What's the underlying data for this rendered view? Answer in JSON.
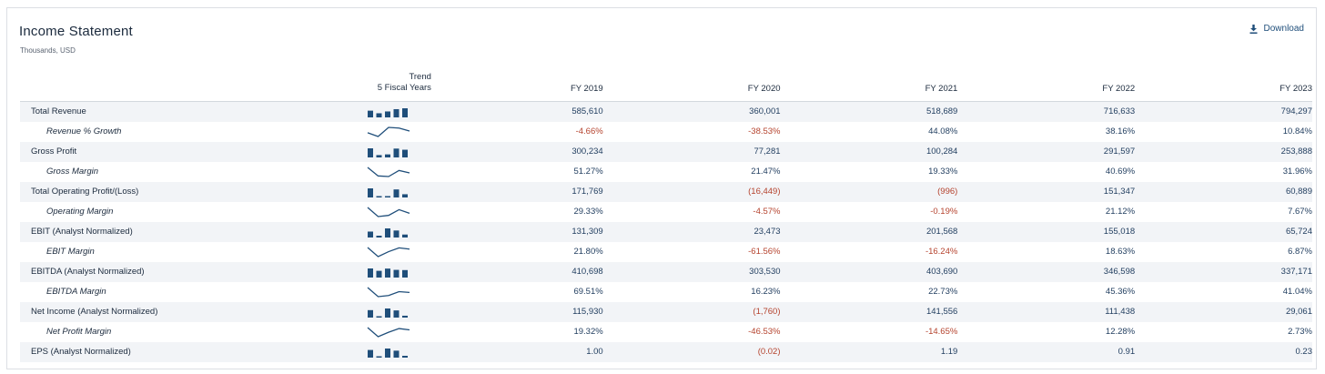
{
  "header": {
    "title": "Income Statement",
    "subtitle": "Thousands, USD",
    "download_label": "Download"
  },
  "columns": {
    "trend_line1": "Trend",
    "trend_line2": "5 Fiscal Years",
    "years": [
      "FY 2019",
      "FY 2020",
      "FY 2021",
      "FY 2022",
      "FY 2023"
    ]
  },
  "colors": {
    "accent": "#1f4e7a",
    "negative": "#b5432e",
    "row_shade": "#f2f4f7"
  },
  "rows": [
    {
      "label": "Total Revenue",
      "sub": false,
      "trend": "bar",
      "values": [
        "585,610",
        "360,001",
        "518,689",
        "716,633",
        "794,297"
      ],
      "raw": [
        585610,
        360001,
        518689,
        716633,
        794297
      ]
    },
    {
      "label": "Revenue % Growth",
      "sub": true,
      "trend": "line",
      "values": [
        "-4.66%",
        "-38.53%",
        "44.08%",
        "38.16%",
        "10.84%"
      ],
      "raw": [
        -4.66,
        -38.53,
        44.08,
        38.16,
        10.84
      ]
    },
    {
      "label": "Gross Profit",
      "sub": false,
      "trend": "bar",
      "values": [
        "300,234",
        "77,281",
        "100,284",
        "291,597",
        "253,888"
      ],
      "raw": [
        300234,
        77281,
        100284,
        291597,
        253888
      ]
    },
    {
      "label": "Gross Margin",
      "sub": true,
      "trend": "line",
      "values": [
        "51.27%",
        "21.47%",
        "19.33%",
        "40.69%",
        "31.96%"
      ],
      "raw": [
        51.27,
        21.47,
        19.33,
        40.69,
        31.96
      ]
    },
    {
      "label": "Total Operating Profit/(Loss)",
      "sub": false,
      "trend": "bar",
      "values": [
        "171,769",
        "(16,449)",
        "(996)",
        "151,347",
        "60,889"
      ],
      "raw": [
        171769,
        -16449,
        -996,
        151347,
        60889
      ]
    },
    {
      "label": "Operating Margin",
      "sub": true,
      "trend": "line",
      "values": [
        "29.33%",
        "-4.57%",
        "-0.19%",
        "21.12%",
        "7.67%"
      ],
      "raw": [
        29.33,
        -4.57,
        -0.19,
        21.12,
        7.67
      ]
    },
    {
      "label": "EBIT (Analyst Normalized)",
      "sub": false,
      "trend": "bar",
      "values": [
        "131,309",
        "23,473",
        "201,568",
        "155,018",
        "65,724"
      ],
      "raw": [
        131309,
        23473,
        201568,
        155018,
        65724
      ]
    },
    {
      "label": "EBIT Margin",
      "sub": true,
      "trend": "line",
      "values": [
        "21.80%",
        "-61.56%",
        "-16.24%",
        "18.63%",
        "6.87%"
      ],
      "raw": [
        21.8,
        -61.56,
        -16.24,
        18.63,
        6.87
      ]
    },
    {
      "label": "EBITDA (Analyst Normalized)",
      "sub": false,
      "trend": "bar",
      "values": [
        "410,698",
        "303,530",
        "403,690",
        "346,598",
        "337,171"
      ],
      "raw": [
        410698,
        303530,
        403690,
        346598,
        337171
      ]
    },
    {
      "label": "EBITDA Margin",
      "sub": true,
      "trend": "line",
      "values": [
        "69.51%",
        "16.23%",
        "22.73%",
        "45.36%",
        "41.04%"
      ],
      "raw": [
        69.51,
        16.23,
        22.73,
        45.36,
        41.04
      ]
    },
    {
      "label": "Net Income (Analyst Normalized)",
      "sub": false,
      "trend": "bar",
      "values": [
        "115,930",
        "(1,760)",
        "141,556",
        "111,438",
        "29,061"
      ],
      "raw": [
        115930,
        -1760,
        141556,
        111438,
        29061
      ]
    },
    {
      "label": "Net Profit Margin",
      "sub": true,
      "trend": "line",
      "values": [
        "19.32%",
        "-46.53%",
        "-14.65%",
        "12.28%",
        "2.73%"
      ],
      "raw": [
        19.32,
        -46.53,
        -14.65,
        12.28,
        2.73
      ]
    },
    {
      "label": "EPS (Analyst Normalized)",
      "sub": false,
      "trend": "bar",
      "values": [
        "1.00",
        "(0.02)",
        "1.19",
        "0.91",
        "0.23"
      ],
      "raw": [
        1.0,
        -0.02,
        1.19,
        0.91,
        0.23
      ]
    }
  ]
}
